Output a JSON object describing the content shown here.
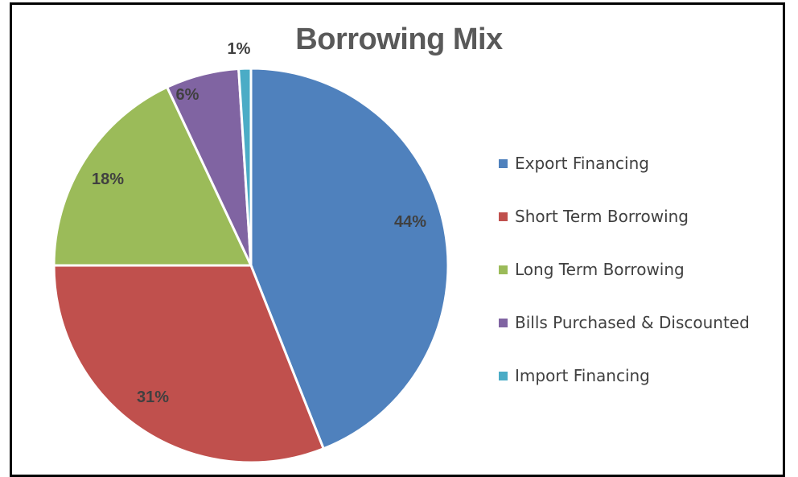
{
  "chart_data": {
    "type": "pie",
    "title": "Borrowing Mix",
    "categories": [
      "Export Financing",
      "Short Term Borrowing",
      "Long Term Borrowing",
      "Bills Purchased & Discounted",
      "Import Financing"
    ],
    "values": [
      44,
      31,
      18,
      6,
      1
    ],
    "data_labels": [
      "44%",
      "31%",
      "18%",
      "6%",
      "1%"
    ],
    "colors": [
      "#4F81BD",
      "#C0504D",
      "#9BBB59",
      "#8064A2",
      "#4BACC6"
    ],
    "legend_position": "right"
  }
}
